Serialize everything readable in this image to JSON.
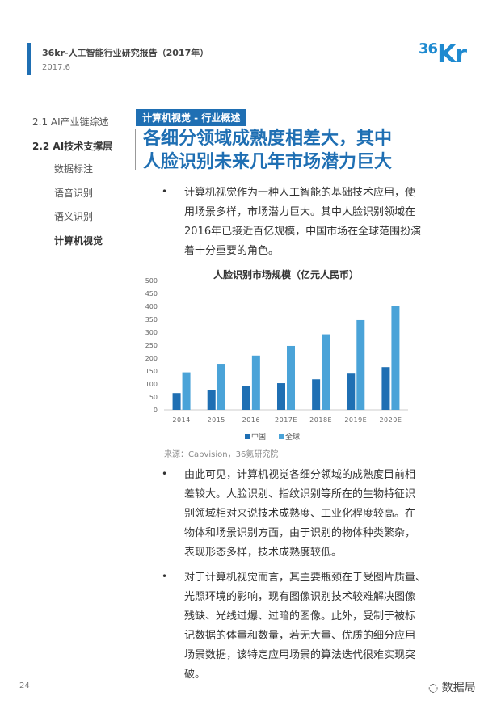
{
  "header": {
    "title": "36kr-人工智能行业研究报告（2017年）",
    "date": "2017.6",
    "logo": "36Kr",
    "accent": "#1f6fb3"
  },
  "nav": {
    "items": [
      {
        "label": "2.1 AI产业链综述",
        "active": false
      },
      {
        "label": "2.2  AI技术支撑层",
        "active": true
      },
      {
        "label": "数据标注",
        "active": false
      },
      {
        "label": "语音识别",
        "active": false
      },
      {
        "label": "语义识别",
        "active": false
      },
      {
        "label": "计算机视觉",
        "active": true
      }
    ]
  },
  "section": {
    "tag": "计算机视觉 - 行业概述",
    "headline_1": "各细分领域成熟度相差大，其中",
    "headline_2": "人脸识别未来几年市场潜力巨大"
  },
  "paragraphs": [
    [
      "计算机视觉作为一种人工智能的基础技术应用，使",
      "用场景多样，市场潜力巨大。其中人脸识别领域在",
      "2016年已接近百亿规模，中国市场在全球范围扮演",
      "着十分重要的角色。"
    ],
    [
      "由此可见，计算机视觉各细分领域的成熟度目前相",
      "差较大。人脸识别、指纹识别等所在的生物特征识",
      "别领域相对来说技术成熟度、工业化程度较高。在",
      "物体和场景识别方面，由于识别的物体种类繁杂，",
      "表现形态多样，技术成熟度较低。"
    ],
    [
      "对于计算机视觉而言，其主要瓶颈在于受图片质量、",
      "光照环境的影响，现有图像识别技术较难解决图像",
      "残缺、光线过爆、过暗的图像。此外，受制于被标",
      "记数据的体量和数量，若无大量、优质的细分应用",
      "场景数据，该特定应用场景的算法迭代很难实现突",
      "破。"
    ]
  ],
  "bullet": "•",
  "chart_data": {
    "type": "bar",
    "title": "人脸识别市场规模（亿元人民币）",
    "categories": [
      "2014",
      "2015",
      "2016",
      "2017E",
      "2018E",
      "2019E",
      "2020E"
    ],
    "series": [
      {
        "name": "中国",
        "values": [
          65,
          78,
          91,
          103,
          118,
          140,
          165
        ],
        "color": "#1f6fb3"
      },
      {
        "name": "全球",
        "values": [
          145,
          178,
          210,
          247,
          292,
          347,
          403
        ],
        "color": "#4aa3d8"
      }
    ],
    "yticks": [
      "0",
      "50",
      "100",
      "150",
      "200",
      "250",
      "300",
      "350",
      "400",
      "450",
      "500"
    ],
    "ylim": [
      0,
      500
    ],
    "grid": false,
    "legend": "bottom"
  },
  "source": "来源：Capvision，36氪研究院",
  "page_number": "24",
  "watermark": "数据局"
}
